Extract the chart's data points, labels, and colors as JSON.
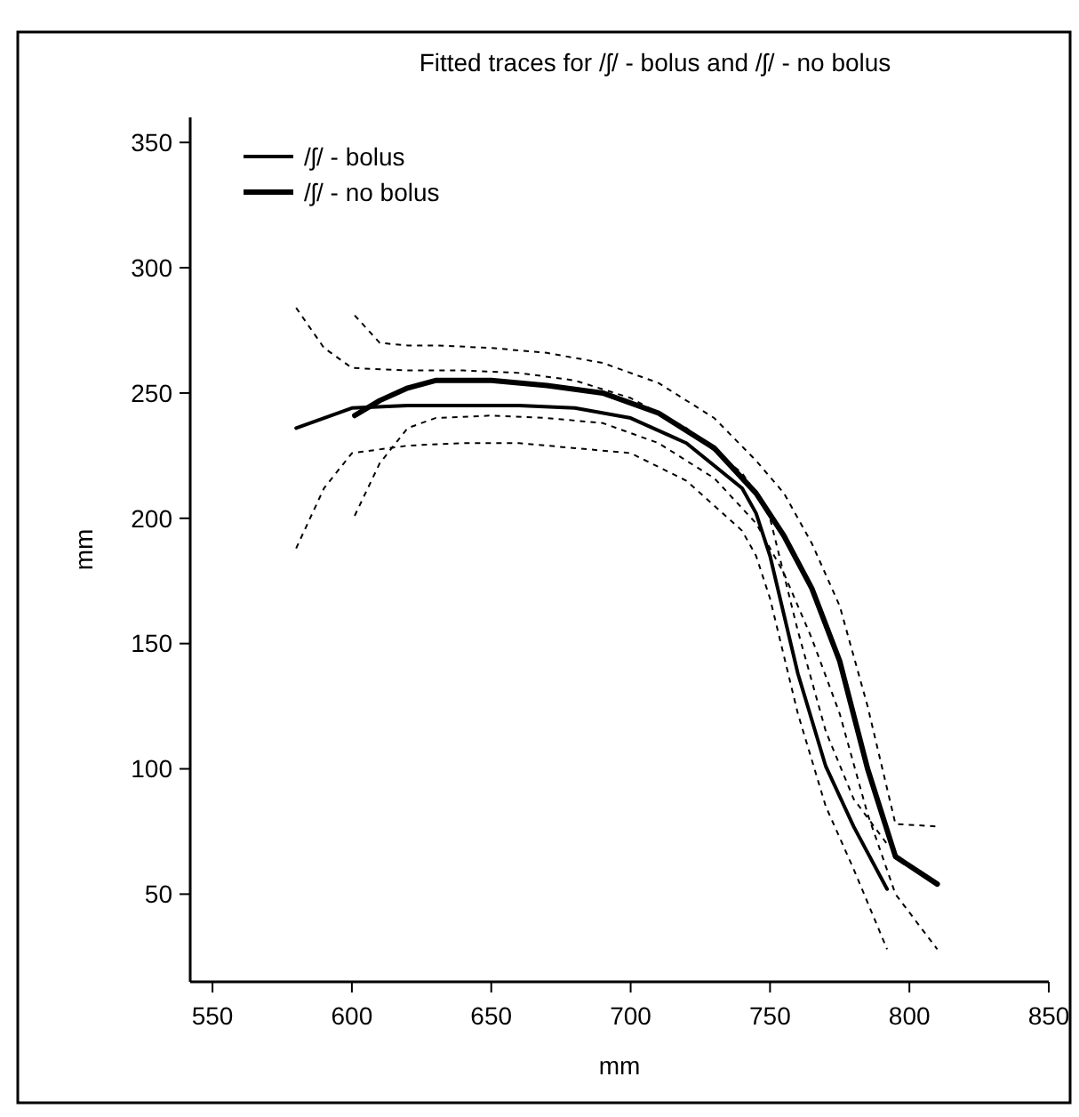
{
  "chart_data": {
    "type": "line",
    "title": "Fitted traces for /ʃ/ - bolus and /ʃ/ - no bolus",
    "xlabel": "mm",
    "ylabel": "mm",
    "xlim": [
      542,
      850
    ],
    "ylim": [
      15,
      360
    ],
    "xticks": [
      550,
      600,
      650,
      700,
      750,
      800,
      850
    ],
    "yticks": [
      50,
      100,
      150,
      200,
      250,
      300,
      350
    ],
    "grid": false,
    "legend": "top left",
    "line_style": "solid",
    "marker": "none",
    "series": [
      {
        "name": "/ʃ/ - bolus",
        "color": "#000000",
        "x": [
          580,
          590,
          600,
          620,
          640,
          660,
          680,
          700,
          720,
          740,
          745,
          750,
          760,
          770,
          780,
          792
        ],
        "values": [
          236,
          240,
          244,
          245,
          245,
          245,
          244,
          240,
          230,
          212,
          202,
          185,
          138,
          101,
          77,
          52
        ]
      },
      {
        "name": "/ʃ/ - no bolus",
        "color": "#000000",
        "x": [
          601,
          610,
          620,
          630,
          650,
          670,
          690,
          710,
          730,
          745,
          755,
          765,
          775,
          785,
          795,
          810
        ],
        "values": [
          241,
          247,
          252,
          255,
          255,
          253,
          250,
          242,
          228,
          210,
          193,
          172,
          143,
          100,
          65,
          54
        ]
      },
      {
        "color": "#000000",
        "line_style": "dashed",
        "x": [
          580,
          590,
          600,
          620,
          640,
          660,
          680,
          700,
          720,
          740,
          745,
          750,
          760,
          770,
          780,
          792
        ],
        "values": [
          284,
          268,
          260,
          259,
          259,
          258,
          255,
          248,
          236,
          218,
          210,
          200,
          155,
          115,
          88,
          70
        ]
      },
      {
        "color": "#000000",
        "line_style": "dashed",
        "x": [
          580,
          590,
          600,
          620,
          640,
          660,
          680,
          700,
          720,
          740,
          745,
          750,
          760,
          770,
          780,
          792
        ],
        "values": [
          188,
          212,
          226,
          229,
          230,
          230,
          228,
          226,
          215,
          195,
          185,
          168,
          122,
          85,
          60,
          28
        ]
      },
      {
        "color": "#000000",
        "line_style": "dashed",
        "x": [
          601,
          610,
          620,
          630,
          650,
          670,
          690,
          710,
          730,
          745,
          755,
          765,
          775,
          785,
          795,
          810
        ],
        "values": [
          281,
          270,
          269,
          269,
          268,
          266,
          262,
          254,
          240,
          223,
          210,
          190,
          165,
          125,
          78,
          77
        ]
      },
      {
        "color": "#000000",
        "line_style": "dashed",
        "x": [
          601,
          610,
          620,
          630,
          650,
          670,
          690,
          710,
          730,
          745,
          755,
          765,
          775,
          785,
          795,
          810
        ],
        "values": [
          201,
          222,
          236,
          240,
          241,
          240,
          238,
          230,
          216,
          198,
          178,
          152,
          122,
          82,
          50,
          28
        ]
      }
    ]
  }
}
